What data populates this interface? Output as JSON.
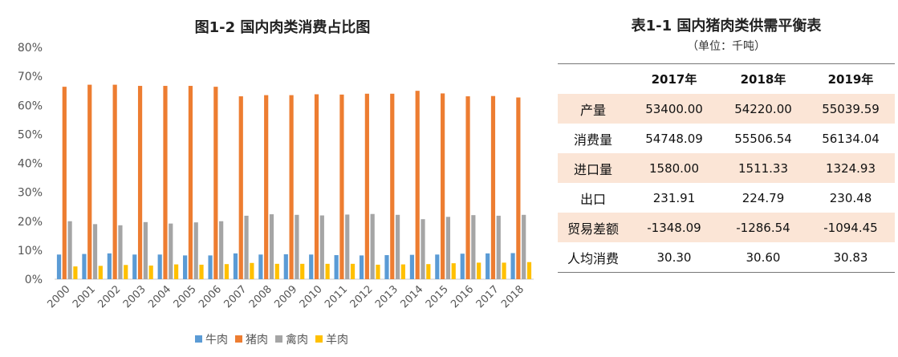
{
  "chart_data": {
    "type": "bar",
    "title": "图1-2 国内肉类消费占比图",
    "categories": [
      "2000",
      "2001",
      "2002",
      "2003",
      "2004",
      "2005",
      "2006",
      "2007",
      "2008",
      "2009",
      "2010",
      "2011",
      "2012",
      "2013",
      "2014",
      "2015",
      "2016",
      "2017",
      "2018"
    ],
    "series": [
      {
        "name": "牛肉",
        "color": "#5b9bd5",
        "values": [
          8.5,
          8.7,
          8.9,
          8.5,
          8.5,
          8.2,
          8.2,
          8.9,
          8.5,
          8.6,
          8.5,
          8.3,
          8.2,
          8.3,
          8.4,
          8.5,
          8.8,
          8.9,
          9.0
        ]
      },
      {
        "name": "猪肉",
        "color": "#ed7d31",
        "values": [
          66.4,
          67.1,
          67.1,
          66.7,
          66.7,
          66.7,
          66.4,
          63.1,
          63.5,
          63.5,
          63.8,
          63.7,
          64.0,
          64.0,
          65.0,
          64.1,
          63.1,
          63.2,
          62.7
        ]
      },
      {
        "name": "禽肉",
        "color": "#a5a5a5",
        "values": [
          20.0,
          19.0,
          18.6,
          19.7,
          19.2,
          19.6,
          20.0,
          21.9,
          22.4,
          22.2,
          22.0,
          22.3,
          22.5,
          22.2,
          20.7,
          21.5,
          22.1,
          21.9,
          22.2
        ]
      },
      {
        "name": "羊肉",
        "color": "#ffc000",
        "values": [
          4.4,
          4.6,
          4.9,
          4.7,
          5.1,
          5.0,
          5.2,
          5.6,
          5.3,
          5.3,
          5.3,
          5.3,
          5.0,
          5.1,
          5.2,
          5.5,
          5.7,
          5.7,
          5.9
        ]
      }
    ],
    "ylim": [
      0,
      80
    ],
    "yticks": [
      0,
      10,
      20,
      30,
      40,
      50,
      60,
      70,
      80
    ],
    "ytick_format": "percent",
    "grid": false,
    "legend_position": "bottom",
    "xlabel": "",
    "ylabel": ""
  },
  "supply_table": {
    "title": "表1-1 国内猪肉类供需平衡表",
    "subtitle": "（单位：千吨）",
    "headers": [
      "",
      "2017年",
      "2018年",
      "2019年"
    ],
    "rows": [
      {
        "label": "产量",
        "values": [
          "53400.00",
          "54220.00",
          "55039.59"
        ],
        "shaded": true
      },
      {
        "label": "消费量",
        "values": [
          "54748.09",
          "55506.54",
          "56134.04"
        ],
        "shaded": false
      },
      {
        "label": "进口量",
        "values": [
          "1580.00",
          "1511.33",
          "1324.93"
        ],
        "shaded": true
      },
      {
        "label": "出口",
        "values": [
          "231.91",
          "224.79",
          "230.48"
        ],
        "shaded": false
      },
      {
        "label": "贸易差额",
        "values": [
          "-1348.09",
          "-1286.54",
          "-1094.45"
        ],
        "shaded": true
      },
      {
        "label": "人均消费",
        "values": [
          "30.30",
          "30.60",
          "30.83"
        ],
        "shaded": false
      }
    ]
  }
}
